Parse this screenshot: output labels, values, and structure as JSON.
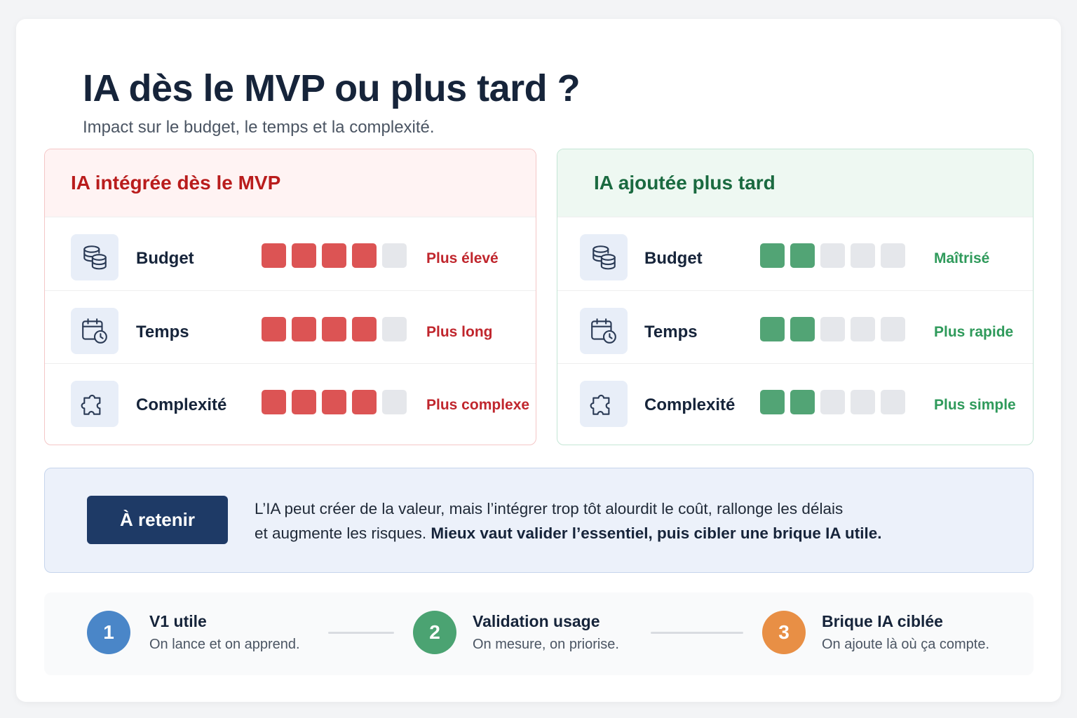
{
  "header": {
    "title": "IA dès le MVP ou plus tard ?",
    "subtitle": "Impact sur le budget, le temps et la complexité."
  },
  "colors": {
    "red_accent": "#dc5454",
    "green_accent": "#52a475",
    "navy": "#1e3a66",
    "step1": "#4a86c8",
    "step2": "#4ba372",
    "step3": "#e88f45"
  },
  "panels": {
    "mvp": {
      "title": "IA intégrée dès le MVP",
      "rows": [
        {
          "icon": "coins-icon",
          "label": "Budget",
          "level": 4,
          "max": 5,
          "status": "Plus élevé"
        },
        {
          "icon": "calendar-clock-icon",
          "label": "Temps",
          "level": 4,
          "max": 5,
          "status": "Plus long"
        },
        {
          "icon": "puzzle-icon",
          "label": "Complexité",
          "level": 4,
          "max": 5,
          "status": "Plus complexe"
        }
      ]
    },
    "later": {
      "title": "IA ajoutée plus tard",
      "rows": [
        {
          "icon": "coins-icon",
          "label": "Budget",
          "level": 2,
          "max": 5,
          "status": "Maîtrisé"
        },
        {
          "icon": "calendar-clock-icon",
          "label": "Temps",
          "level": 2,
          "max": 5,
          "status": "Plus rapide"
        },
        {
          "icon": "puzzle-icon",
          "label": "Complexité",
          "level": 2,
          "max": 5,
          "status": "Plus simple"
        }
      ]
    }
  },
  "takeaway": {
    "button_label": "À retenir",
    "text_line1": "L’IA peut créer de la valeur, mais l’intégrer trop tôt alourdit le coût, rallonge les délais",
    "text_line2_plain": "et augmente les risques.",
    "text_line2_bold": "Mieux vaut valider l’essentiel, puis cibler une brique IA utile."
  },
  "steps": [
    {
      "number": "1",
      "title": "V1 utile",
      "description": "On lance et on apprend."
    },
    {
      "number": "2",
      "title": "Validation usage",
      "description": "On mesure, on priorise."
    },
    {
      "number": "3",
      "title": "Brique IA ciblée",
      "description": "On ajoute là où ça compte."
    }
  ]
}
